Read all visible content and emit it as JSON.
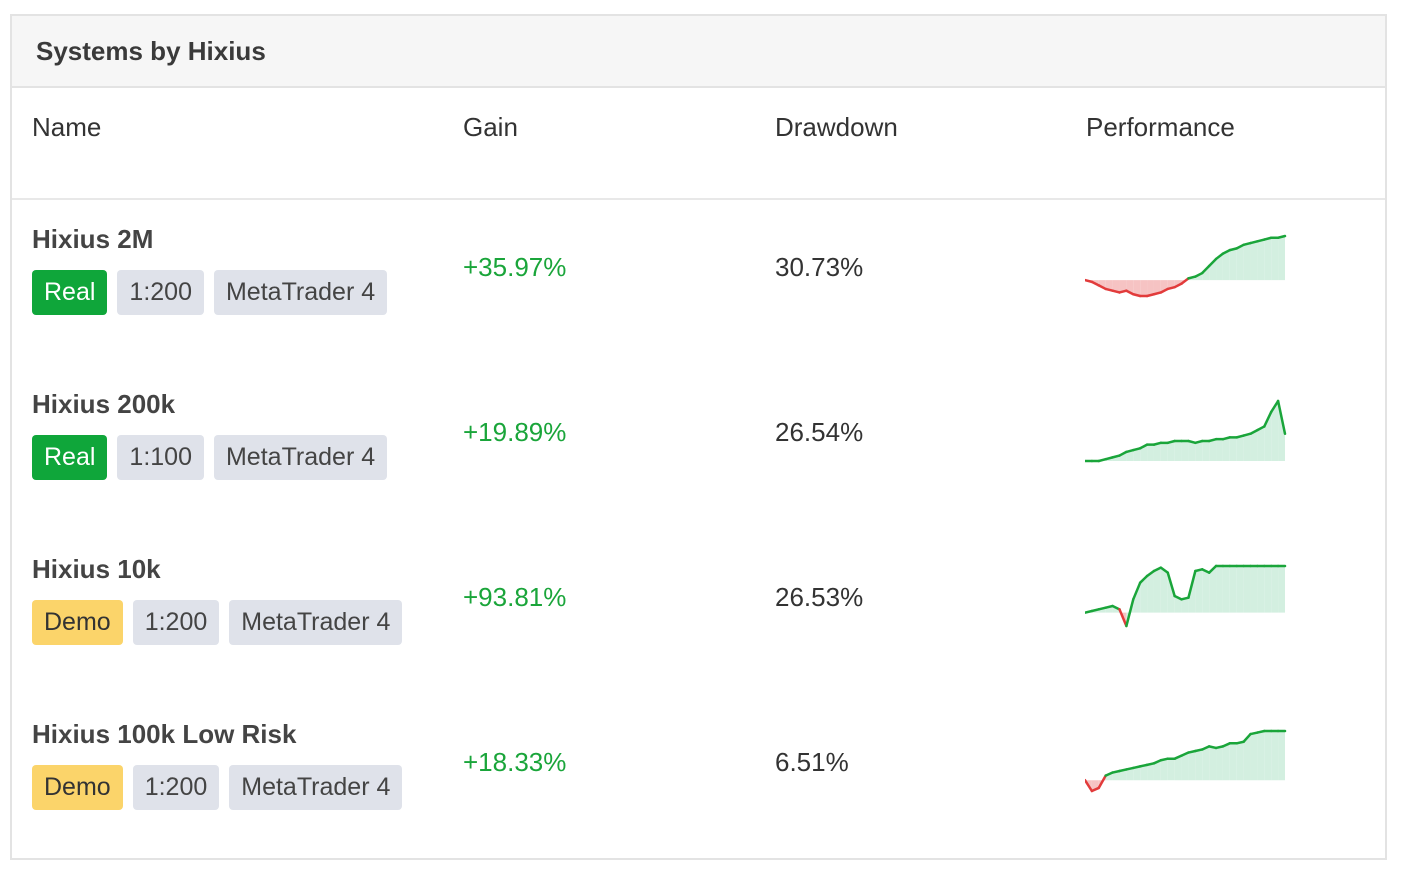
{
  "panel": {
    "title": "Systems by Hixius"
  },
  "columns": {
    "name": "Name",
    "gain": "Gain",
    "drawdown": "Drawdown",
    "performance": "Performance"
  },
  "colors": {
    "positive": "#1aa53a",
    "negative": "#e23b3b",
    "pos_fill": "#d3efe0",
    "neg_fill": "#f6c3c3",
    "real": "#0fa63a",
    "demo": "#fbd46a"
  },
  "rows": [
    {
      "name": "Hixius 2M",
      "badges": [
        {
          "text": "Real",
          "kind": "real"
        },
        {
          "text": "1:200",
          "kind": "grey"
        },
        {
          "text": "MetaTrader 4",
          "kind": "grey"
        }
      ],
      "gain": "+35.97%",
      "drawdown": "30.73%",
      "performance": [
        0,
        -1,
        -3,
        -5,
        -6,
        -7,
        -6,
        -8,
        -9,
        -9,
        -8,
        -7,
        -5,
        -4,
        -2,
        1,
        2,
        4,
        8,
        12,
        15,
        17,
        18,
        20,
        21,
        22,
        23,
        24,
        24,
        25
      ]
    },
    {
      "name": "Hixius 200k",
      "badges": [
        {
          "text": "Real",
          "kind": "real"
        },
        {
          "text": "1:100",
          "kind": "grey"
        },
        {
          "text": "MetaTrader 4",
          "kind": "grey"
        }
      ],
      "gain": "+19.89%",
      "drawdown": "26.54%",
      "performance": [
        0,
        0,
        0,
        1,
        2,
        3,
        5,
        6,
        7,
        9,
        9,
        10,
        10,
        11,
        11,
        11,
        10,
        11,
        11,
        12,
        12,
        13,
        13,
        14,
        15,
        17,
        19,
        27,
        33,
        15
      ]
    },
    {
      "name": "Hixius 10k",
      "badges": [
        {
          "text": "Demo",
          "kind": "demo"
        },
        {
          "text": "1:200",
          "kind": "grey"
        },
        {
          "text": "MetaTrader 4",
          "kind": "grey"
        }
      ],
      "gain": "+93.81%",
      "drawdown": "26.53%",
      "performance": [
        0,
        1,
        2,
        3,
        4,
        2,
        -8,
        8,
        18,
        22,
        25,
        27,
        24,
        10,
        8,
        9,
        25,
        26,
        24,
        28,
        28,
        28,
        28,
        28,
        28,
        28,
        28,
        28,
        28,
        28
      ]
    },
    {
      "name": "Hixius 100k Low Risk",
      "badges": [
        {
          "text": "Demo",
          "kind": "demo"
        },
        {
          "text": "1:200",
          "kind": "grey"
        },
        {
          "text": "MetaTrader 4",
          "kind": "grey"
        }
      ],
      "gain": "+18.33%",
      "drawdown": "6.51%",
      "performance": [
        0,
        -7,
        -5,
        3,
        5,
        6,
        7,
        8,
        9,
        10,
        11,
        13,
        14,
        14,
        16,
        18,
        19,
        20,
        22,
        21,
        22,
        24,
        24,
        25,
        30,
        31,
        32,
        32,
        32,
        32
      ]
    }
  ]
}
